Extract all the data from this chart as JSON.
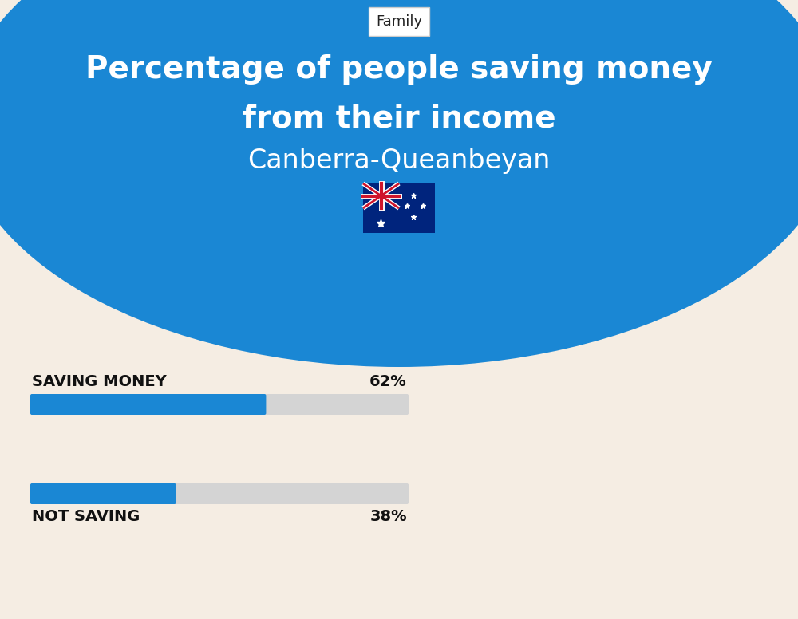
{
  "title_line1": "Percentage of people saving money",
  "title_line2": "from their income",
  "subtitle": "Canberra-Queanbeyan",
  "category_label": "Family",
  "bar1_label": "SAVING MONEY",
  "bar1_value": 62,
  "bar1_pct": "62%",
  "bar2_label": "NOT SAVING",
  "bar2_value": 38,
  "bar2_pct": "38%",
  "bar_color": "#1a87d4",
  "bar_bg_color": "#d4d4d4",
  "bg_color": "#f5ede3",
  "circle_color": "#1a87d4",
  "title_color": "#ffffff",
  "label_color": "#111111",
  "fig_width": 10.0,
  "fig_height": 7.76,
  "dpi": 100
}
